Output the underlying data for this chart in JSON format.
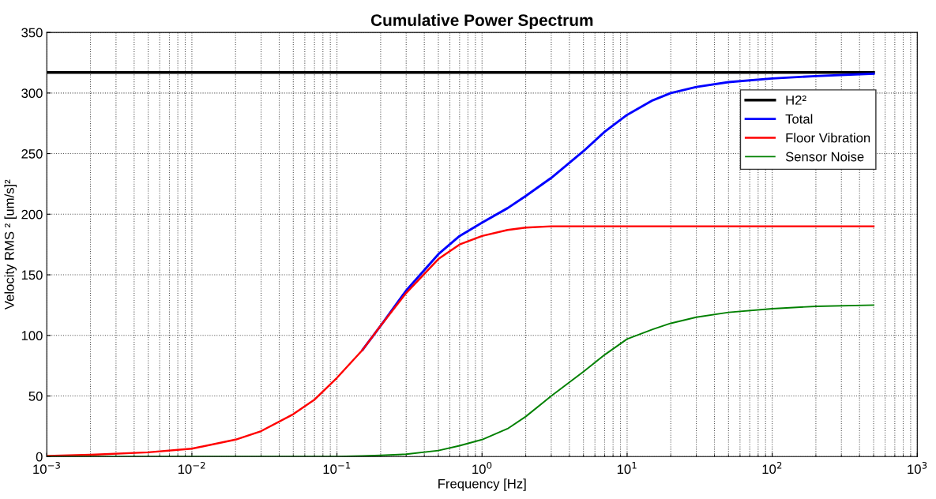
{
  "chart_data": {
    "type": "line",
    "title": "Cumulative Power Spectrum",
    "xlabel": "Frequency [Hz]",
    "ylabel": "Velocity RMS ² [um/s]²",
    "log": "x",
    "grid": true,
    "legend": "top right",
    "line_style": "solid",
    "marker": "none",
    "xlim": [
      0.001,
      1000
    ],
    "ylim": [
      0,
      350
    ],
    "xticks": [
      {
        "value": 0.001,
        "label": "10$^{−3}$"
      },
      {
        "value": 0.01,
        "label": "10$^{−2}$"
      },
      {
        "value": 0.1,
        "label": "10$^{−1}$"
      },
      {
        "value": 1,
        "label": "10$^{0}$"
      },
      {
        "value": 10,
        "label": "10$^{1}$"
      },
      {
        "value": 100,
        "label": "10$^{2}$"
      },
      {
        "value": 1000,
        "label": "10$^{3}$"
      }
    ],
    "yticks": [
      0,
      50,
      100,
      150,
      200,
      250,
      300,
      350
    ],
    "series": [
      {
        "name": "H2²",
        "color": "#000000",
        "x": [
          0.001,
          500
        ],
        "values": [
          317,
          317
        ]
      },
      {
        "name": "Total",
        "color": "#0000ff",
        "x": [
          0.15,
          0.2,
          0.3,
          0.5,
          0.7,
          1,
          1.5,
          2,
          3,
          5,
          7,
          10,
          15,
          20,
          30,
          50,
          100,
          200,
          500
        ],
        "values": [
          88,
          108,
          137,
          167,
          182,
          193,
          205,
          215,
          230,
          252,
          268,
          282,
          294,
          300,
          305,
          309,
          312,
          314,
          316
        ]
      },
      {
        "name": "Floor Vibration",
        "color": "#ff0000",
        "x": [
          0.001,
          0.002,
          0.005,
          0.01,
          0.02,
          0.03,
          0.05,
          0.07,
          0.1,
          0.15,
          0.2,
          0.3,
          0.5,
          0.7,
          1,
          1.5,
          2,
          3,
          5,
          500
        ],
        "values": [
          0.5,
          1.5,
          3.5,
          6.5,
          14,
          21,
          35,
          47,
          65,
          88,
          108,
          135,
          163,
          175,
          182,
          187,
          189,
          190,
          190,
          190
        ]
      },
      {
        "name": "Sensor Noise",
        "color": "#008000",
        "x": [
          0.001,
          0.1,
          0.15,
          0.2,
          0.3,
          0.5,
          0.7,
          1,
          1.5,
          2,
          3,
          5,
          7,
          10,
          15,
          20,
          30,
          50,
          100,
          200,
          500
        ],
        "values": [
          0,
          0,
          0.5,
          1,
          2,
          5,
          9,
          14,
          23,
          33,
          50,
          70,
          84,
          97,
          105,
          110,
          115,
          119,
          122,
          124,
          125
        ]
      }
    ]
  }
}
